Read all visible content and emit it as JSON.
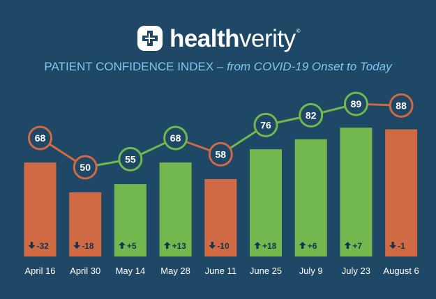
{
  "brand": {
    "name_bold": "health",
    "name_regular": "verity",
    "trademark": "®",
    "icon": "healthverity-cross-logo-icon"
  },
  "title": {
    "main": "PATIENT CONFIDENCE INDEX",
    "separator": " – ",
    "sub": "from COVID-19 Onset to Today"
  },
  "colors": {
    "background": "#1f4766",
    "increase": "#72b84f",
    "decrease": "#cf6a44",
    "title": "#7fc6ee",
    "change_text": "#15344d"
  },
  "chart_data": {
    "type": "bar",
    "title": "PATIENT CONFIDENCE INDEX – from COVID-19 Onset to Today",
    "categories": [
      "April 16",
      "April 30",
      "May 14",
      "May 28",
      "June 11",
      "June 25",
      "July 9",
      "July 23",
      "August 6"
    ],
    "values": [
      68,
      50,
      55,
      68,
      58,
      76,
      82,
      89,
      88
    ],
    "change_labels": [
      "-32",
      "-18",
      "+5",
      "+13",
      "-10",
      "+18",
      "+6",
      "+7",
      "-1"
    ],
    "change_direction": [
      "down",
      "down",
      "up",
      "up",
      "down",
      "up",
      "up",
      "up",
      "down"
    ],
    "overlay": "line",
    "ylim": [
      0,
      100
    ],
    "grid": false,
    "legend": "none"
  }
}
